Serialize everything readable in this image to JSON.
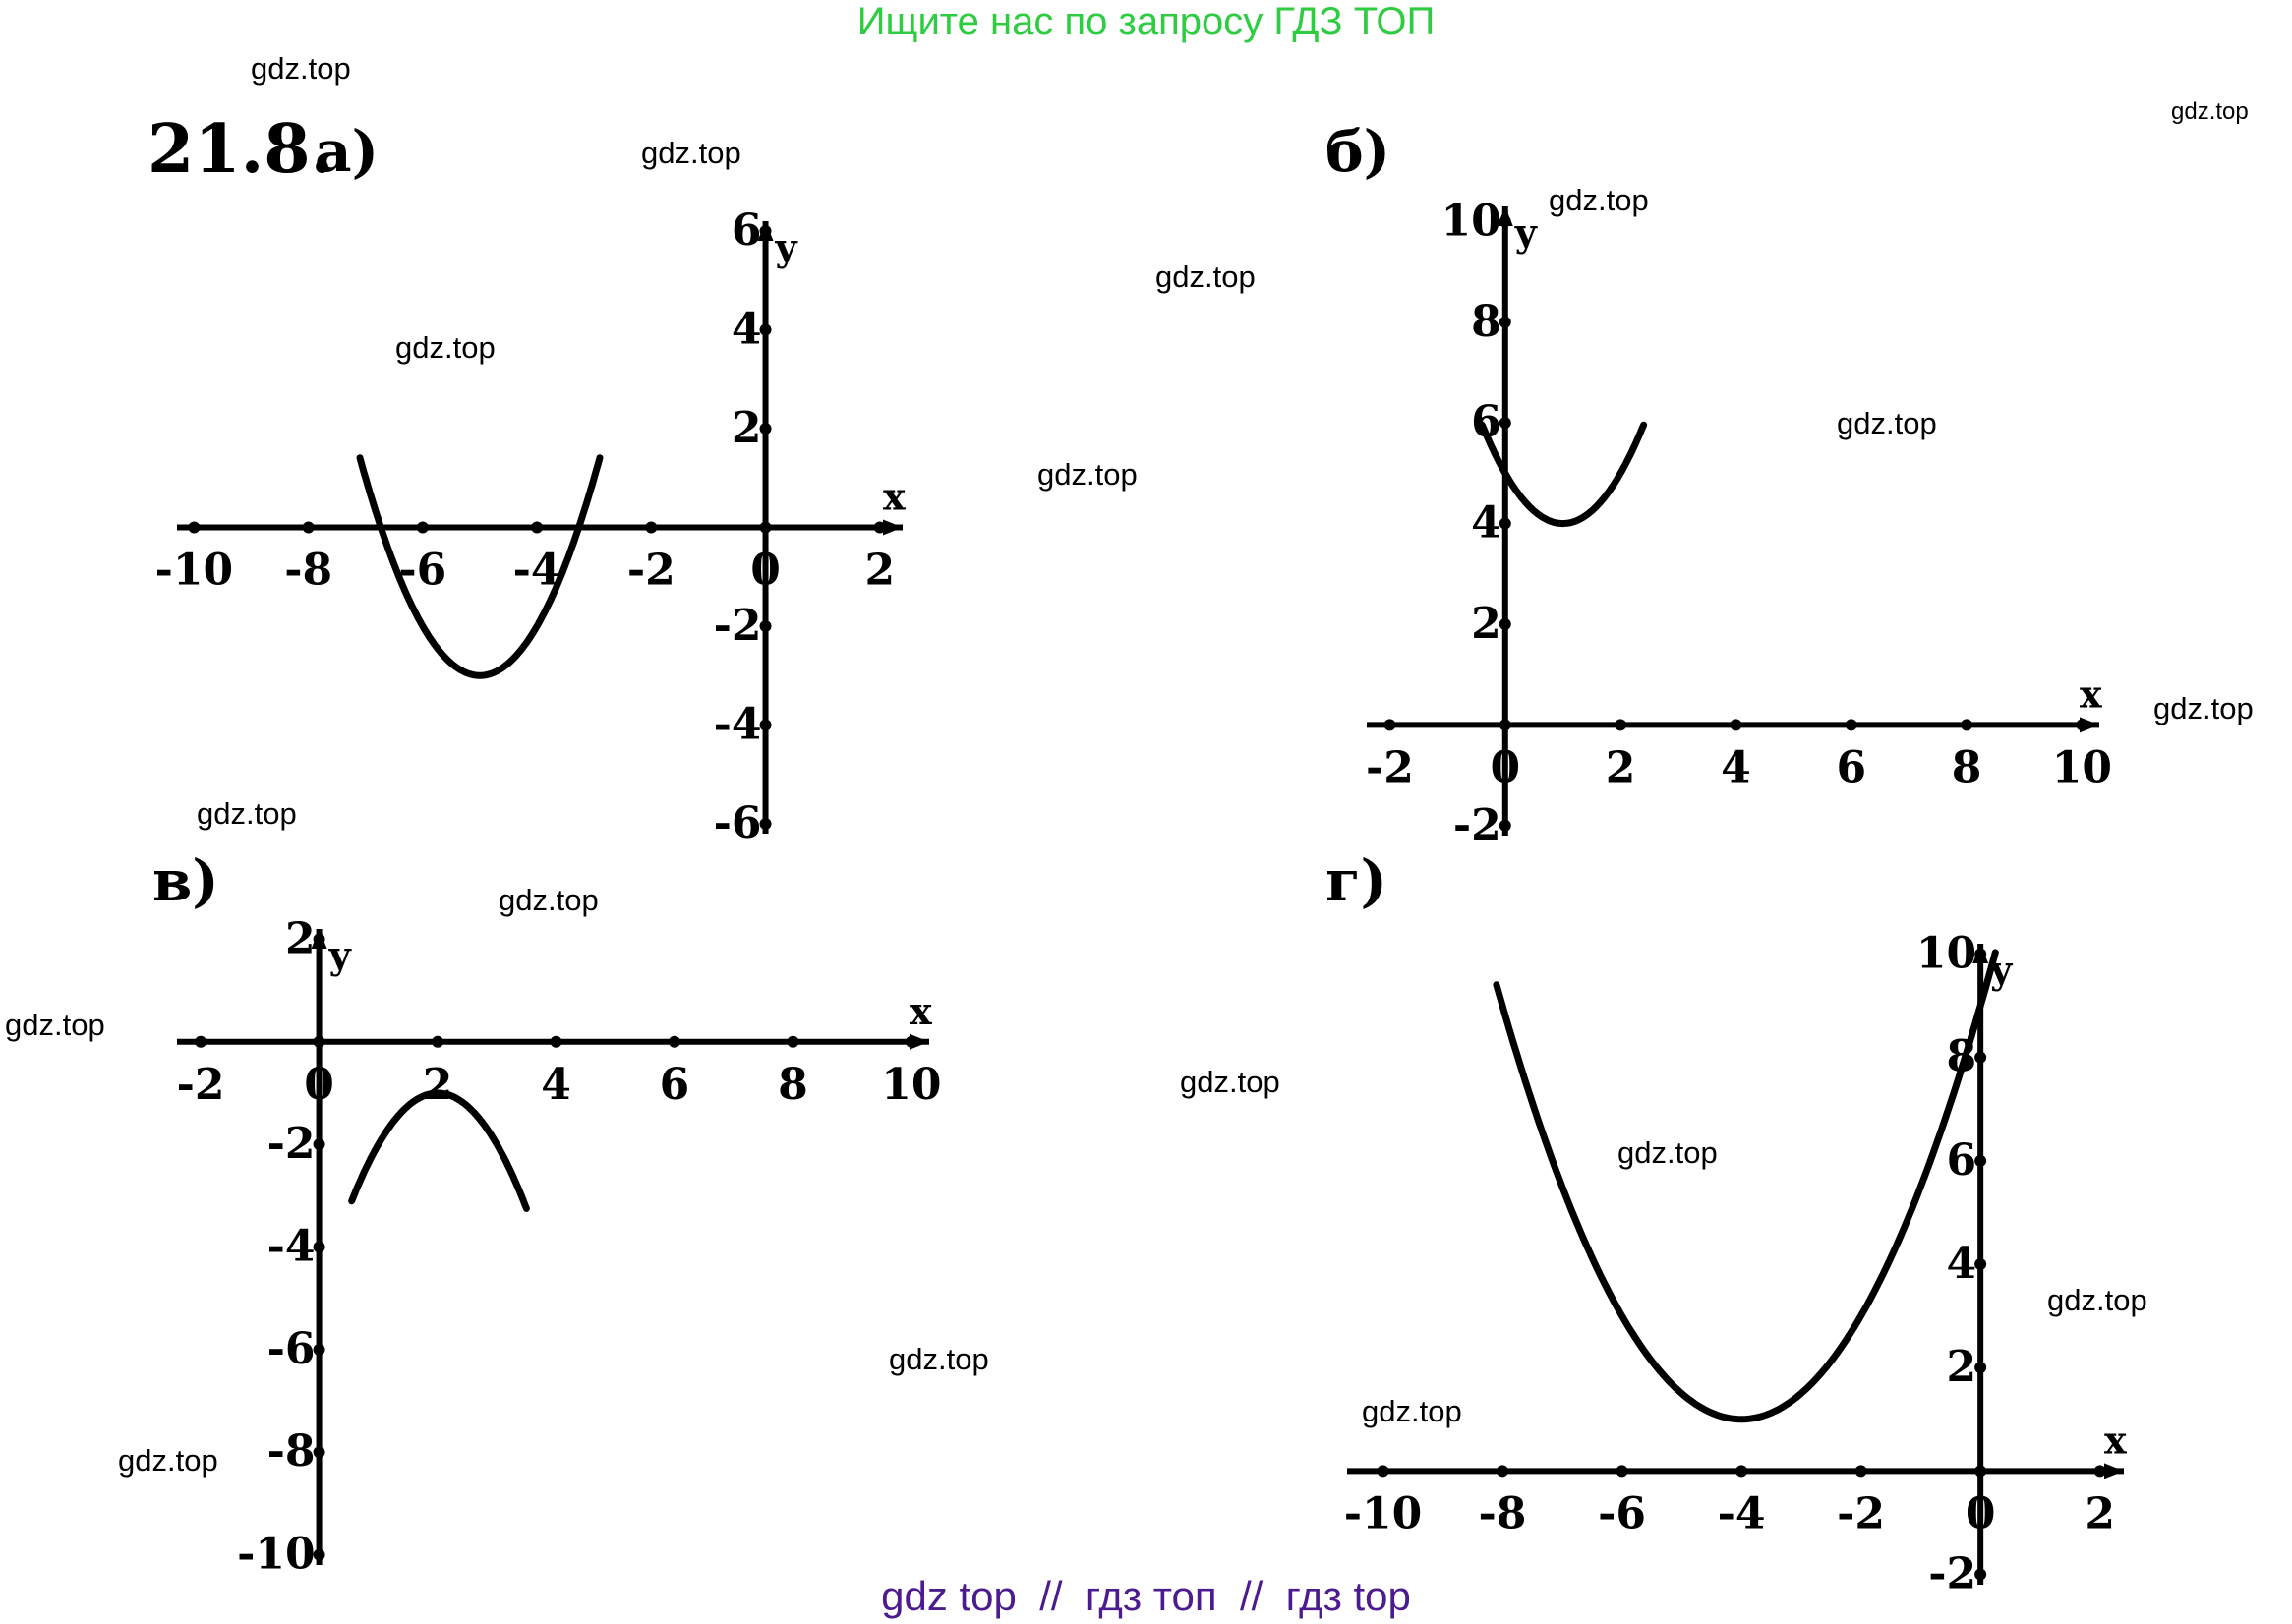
{
  "header": {
    "banner_text": "Ищите нас по запросу ГДЗ ТОП",
    "banner_color": "#2ecc40"
  },
  "footer": {
    "text": "gdz top  //  гдз топ  //  гдз top",
    "color": "#4b1b8f"
  },
  "problem_number": "21.8.",
  "watermarks": [
    "gdz.top",
    "gdz.top",
    "gdz.top",
    "gdz.top",
    "gdz.top",
    "gdz.top",
    "gdz.top",
    "gdz.top",
    "gdz.top",
    "gdz.top",
    "gdz.top",
    "gdz.top",
    "gdz.top",
    "gdz.top",
    "gdz.top",
    "gdz.top",
    "gdz.top",
    "gdz.top"
  ],
  "chart_data": [
    {
      "label": "а)",
      "type": "line",
      "xlabel": "x",
      "ylabel": "y",
      "xlim": [
        -10.3,
        2.4
      ],
      "ylim": [
        -6.2,
        6.2
      ],
      "x_ticks": [
        -10,
        -8,
        -6,
        -4,
        -2,
        0,
        2
      ],
      "x_tick_labels": [
        "-10",
        "-8",
        "-6",
        "-4",
        "-2",
        "0",
        "2"
      ],
      "y_ticks": [
        -6,
        -4,
        -2,
        2,
        4,
        6
      ],
      "y_tick_labels": [
        "-6",
        "-4",
        "-2",
        "2",
        "4",
        "6"
      ],
      "series": [
        {
          "vertex": [
            -5,
            -3
          ],
          "a": 1,
          "x_range": [
            -7.1,
            -2.9
          ]
        }
      ]
    },
    {
      "label": "б)",
      "type": "line",
      "xlabel": "x",
      "ylabel": "y",
      "xlim": [
        -2.4,
        10.3
      ],
      "ylim": [
        -2.2,
        10.3
      ],
      "x_ticks": [
        -2,
        0,
        2,
        4,
        6,
        8,
        10
      ],
      "x_tick_labels": [
        "-2",
        "0",
        "2",
        "4",
        "6",
        "8",
        "10"
      ],
      "y_ticks": [
        -2,
        2,
        4,
        6,
        8,
        10
      ],
      "y_tick_labels": [
        "-2",
        "2",
        "4",
        "6",
        "8",
        "10"
      ],
      "series": [
        {
          "vertex": [
            1,
            4
          ],
          "a": 1,
          "x_range": [
            -0.4,
            2.4
          ]
        }
      ]
    },
    {
      "label": "в)",
      "type": "line",
      "xlabel": "x",
      "ylabel": "y",
      "xlim": [
        -2.4,
        10.3
      ],
      "ylim": [
        -10.2,
        2.2
      ],
      "x_ticks": [
        -2,
        0,
        2,
        4,
        6,
        8,
        10
      ],
      "x_tick_labels": [
        "-2",
        "0",
        "2",
        "4",
        "6",
        "8",
        "10"
      ],
      "y_ticks": [
        -10,
        -8,
        -6,
        -4,
        -2,
        2
      ],
      "y_tick_labels": [
        "-10",
        "-8",
        "-6",
        "-4",
        "-2",
        "2"
      ],
      "series": [
        {
          "vertex": [
            2,
            -1
          ],
          "a": -1,
          "x_range": [
            0.55,
            3.5
          ]
        }
      ]
    },
    {
      "label": "г)",
      "type": "line",
      "xlabel": "x",
      "ylabel": "y",
      "xlim": [
        -10.6,
        2.4
      ],
      "ylim": [
        -2.2,
        10.2
      ],
      "x_ticks": [
        -10,
        -8,
        -6,
        -4,
        -2,
        0,
        2
      ],
      "x_tick_labels": [
        "-10",
        "-8",
        "-6",
        "-4",
        "-2",
        "0",
        "2"
      ],
      "y_ticks": [
        -2,
        2,
        4,
        6,
        8,
        10
      ],
      "y_tick_labels": [
        "-2",
        "2",
        "4",
        "6",
        "8",
        "10"
      ],
      "series": [
        {
          "vertex": [
            -4,
            1
          ],
          "a": 0.5,
          "x_range": [
            -8.1,
            0.25
          ]
        }
      ]
    }
  ]
}
